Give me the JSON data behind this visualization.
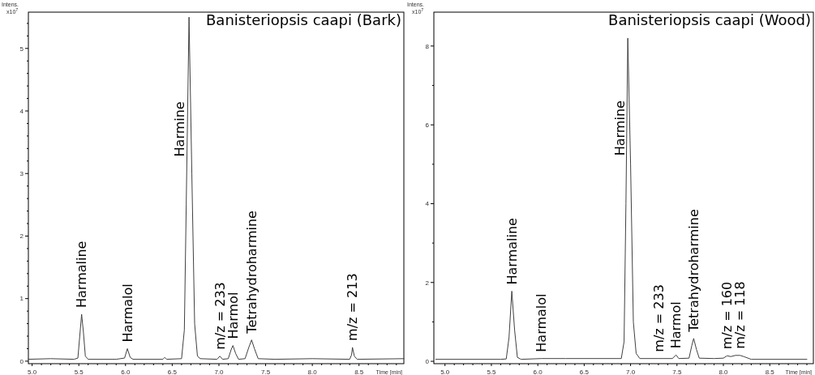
{
  "chart_data": [
    {
      "type": "line",
      "title": "Banisteriopsis caapi (Bark)",
      "xlabel": "Time [min]",
      "ylabel": "Intens. x10$^{7}$",
      "xlim": [
        4.96,
        8.98
      ],
      "ylim": [
        -0.04,
        5.58
      ],
      "xticks": [
        {
          "value": 5,
          "label": "5.0"
        },
        {
          "value": 5.1,
          "label": null
        },
        {
          "value": 5.2,
          "label": null
        },
        {
          "value": 5.3,
          "label": null
        },
        {
          "value": 5.4,
          "label": null
        },
        {
          "value": 5.5,
          "label": "5.5"
        },
        {
          "value": 5.6,
          "label": null
        },
        {
          "value": 5.7,
          "label": null
        },
        {
          "value": 5.8,
          "label": null
        },
        {
          "value": 5.9,
          "label": null
        },
        {
          "value": 6,
          "label": "6.0"
        },
        {
          "value": 6.1,
          "label": null
        },
        {
          "value": 6.2,
          "label": null
        },
        {
          "value": 6.3,
          "label": null
        },
        {
          "value": 6.4,
          "label": null
        },
        {
          "value": 6.5,
          "label": "6.5"
        },
        {
          "value": 6.6,
          "label": null
        },
        {
          "value": 6.7,
          "label": null
        },
        {
          "value": 6.8,
          "label": null
        },
        {
          "value": 6.9,
          "label": null
        },
        {
          "value": 7,
          "label": "7.0"
        },
        {
          "value": 7.1,
          "label": null
        },
        {
          "value": 7.2,
          "label": null
        },
        {
          "value": 7.3,
          "label": null
        },
        {
          "value": 7.4,
          "label": null
        },
        {
          "value": 7.5,
          "label": "7.5"
        },
        {
          "value": 7.6,
          "label": null
        },
        {
          "value": 7.7,
          "label": null
        },
        {
          "value": 7.8,
          "label": null
        },
        {
          "value": 7.9,
          "label": null
        },
        {
          "value": 8,
          "label": "8.0"
        },
        {
          "value": 8.1,
          "label": null
        },
        {
          "value": 8.2,
          "label": null
        },
        {
          "value": 8.3,
          "label": null
        },
        {
          "value": 8.4,
          "label": null
        },
        {
          "value": 8.5,
          "label": "8.5"
        },
        {
          "value": 8.6,
          "label": null
        },
        {
          "value": 8.7,
          "label": null
        },
        {
          "value": 8.8,
          "label": null
        },
        {
          "value": 8.9,
          "label": null
        }
      ],
      "yticks": [
        0,
        {
          "value": 0.2,
          "label": null
        },
        {
          "value": 0.4,
          "label": null
        },
        {
          "value": 0.6,
          "label": null
        },
        {
          "value": 0.8,
          "label": null
        },
        1,
        {
          "value": 1.2,
          "label": null
        },
        {
          "value": 1.4,
          "label": null
        },
        {
          "value": 1.6,
          "label": null
        },
        {
          "value": 1.8,
          "label": null
        },
        2,
        {
          "value": 2.2,
          "label": null
        },
        {
          "value": 2.4,
          "label": null
        },
        {
          "value": 2.6,
          "label": null
        },
        {
          "value": 2.8,
          "label": null
        },
        3,
        {
          "value": 3.2,
          "label": null
        },
        {
          "value": 3.4,
          "label": null
        },
        {
          "value": 3.6,
          "label": null
        },
        {
          "value": 3.8,
          "label": null
        },
        4,
        {
          "value": 4.2,
          "label": null
        },
        {
          "value": 4.4,
          "label": null
        },
        {
          "value": 4.6,
          "label": null
        },
        {
          "value": 4.8,
          "label": null
        },
        5,
        {
          "value": 5.2,
          "label": null
        },
        {
          "value": 5.4,
          "label": null
        }
      ],
      "grid": false,
      "series": [
        {
          "color": "#404040",
          "x": [
            4.96,
            5.2,
            5.45,
            5.49,
            5.51,
            5.53,
            5.55,
            5.57,
            5.6,
            5.9,
            5.99,
            6.02,
            6.05,
            6.08,
            6.4,
            6.42,
            6.44,
            6.6,
            6.63,
            6.65,
            6.68,
            6.71,
            6.74,
            6.77,
            6.8,
            6.98,
            7.01,
            7.04,
            7.1,
            7.13,
            7.15,
            7.18,
            7.21,
            7.28,
            7.32,
            7.35,
            7.38,
            7.42,
            7.6,
            8.0,
            8.4,
            8.42,
            8.43,
            8.45,
            8.48,
            8.98
          ],
          "values": [
            0.03,
            0.04,
            0.03,
            0.05,
            0.4,
            0.75,
            0.45,
            0.08,
            0.03,
            0.03,
            0.05,
            0.2,
            0.06,
            0.03,
            0.03,
            0.06,
            0.03,
            0.04,
            0.5,
            2.5,
            5.5,
            3.0,
            0.6,
            0.08,
            0.04,
            0.03,
            0.08,
            0.03,
            0.04,
            0.18,
            0.25,
            0.12,
            0.03,
            0.04,
            0.22,
            0.34,
            0.2,
            0.04,
            0.03,
            0.04,
            0.03,
            0.1,
            0.22,
            0.08,
            0.03,
            0.04
          ]
        }
      ],
      "annotations": [
        {
          "text": "Harmaline",
          "x": 5.53,
          "y": 0.75
        },
        {
          "text": "Harmalol",
          "x": 6.02,
          "y": 0.2
        },
        {
          "text": "Harmine",
          "x": 6.66,
          "y": 3.7
        },
        {
          "text": "m/z = 233",
          "x": 7.01,
          "y": 0.08
        },
        {
          "text": "Harmol",
          "x": 7.15,
          "y": 0.25
        },
        {
          "text": "Tetrahydroharmine",
          "x": 7.35,
          "y": 0.34
        },
        {
          "text": "m/z = 213",
          "x": 8.43,
          "y": 0.22
        }
      ]
    },
    {
      "type": "line",
      "title": "Banisteriopsis caapi (Wood)",
      "xlabel": "Time [min]",
      "ylabel": "Intens. x10$^{7}$",
      "xlim": [
        4.88,
        8.97
      ],
      "ylim": [
        -0.06,
        8.86
      ],
      "xticks": [
        {
          "value": 5,
          "label": "5.0"
        },
        {
          "value": 5.1,
          "label": null
        },
        {
          "value": 5.2,
          "label": null
        },
        {
          "value": 5.3,
          "label": null
        },
        {
          "value": 5.4,
          "label": null
        },
        {
          "value": 5.5,
          "label": "5.5"
        },
        {
          "value": 5.6,
          "label": null
        },
        {
          "value": 5.7,
          "label": null
        },
        {
          "value": 5.8,
          "label": null
        },
        {
          "value": 5.9,
          "label": null
        },
        {
          "value": 6,
          "label": "6.0"
        },
        {
          "value": 6.1,
          "label": null
        },
        {
          "value": 6.2,
          "label": null
        },
        {
          "value": 6.3,
          "label": null
        },
        {
          "value": 6.4,
          "label": null
        },
        {
          "value": 6.5,
          "label": "6.5"
        },
        {
          "value": 6.6,
          "label": null
        },
        {
          "value": 6.7,
          "label": null
        },
        {
          "value": 6.8,
          "label": null
        },
        {
          "value": 6.9,
          "label": null
        },
        {
          "value": 7,
          "label": "7.0"
        },
        {
          "value": 7.1,
          "label": null
        },
        {
          "value": 7.2,
          "label": null
        },
        {
          "value": 7.3,
          "label": null
        },
        {
          "value": 7.4,
          "label": null
        },
        {
          "value": 7.5,
          "label": "7.5"
        },
        {
          "value": 7.6,
          "label": null
        },
        {
          "value": 7.7,
          "label": null
        },
        {
          "value": 7.8,
          "label": null
        },
        {
          "value": 7.9,
          "label": null
        },
        {
          "value": 8,
          "label": "8.0"
        },
        {
          "value": 8.1,
          "label": null
        },
        {
          "value": 8.2,
          "label": null
        },
        {
          "value": 8.3,
          "label": null
        },
        {
          "value": 8.4,
          "label": null
        },
        {
          "value": 8.5,
          "label": "8.5"
        },
        {
          "value": 8.6,
          "label": null
        },
        {
          "value": 8.7,
          "label": null
        },
        {
          "value": 8.8,
          "label": null
        },
        {
          "value": 8.9,
          "label": null
        }
      ],
      "yticks": [
        0,
        {
          "value": 1,
          "label": null
        },
        2,
        {
          "value": 3,
          "label": null
        },
        4,
        {
          "value": 5,
          "label": null
        },
        6,
        {
          "value": 7,
          "label": null
        },
        8
      ],
      "grid": false,
      "series": [
        {
          "color": "#404040",
          "x": [
            4.9,
            5.6,
            5.66,
            5.69,
            5.72,
            5.75,
            5.78,
            5.82,
            6.04,
            6.3,
            6.9,
            6.93,
            6.95,
            6.97,
            7.0,
            7.03,
            7.06,
            7.1,
            7.3,
            7.45,
            7.49,
            7.52,
            7.63,
            7.66,
            7.68,
            7.71,
            7.74,
            7.9,
            8.0,
            8.04,
            8.08,
            8.13,
            8.18,
            8.22,
            8.3,
            8.9
          ],
          "values": [
            0.05,
            0.05,
            0.06,
            0.6,
            1.78,
            0.8,
            0.1,
            0.05,
            0.07,
            0.07,
            0.07,
            0.5,
            4.0,
            8.2,
            5.0,
            1.0,
            0.2,
            0.07,
            0.07,
            0.07,
            0.16,
            0.07,
            0.08,
            0.4,
            0.58,
            0.3,
            0.08,
            0.07,
            0.08,
            0.14,
            0.12,
            0.15,
            0.15,
            0.12,
            0.05,
            0.05
          ]
        }
      ],
      "annotations": [
        {
          "text": "Harmaline",
          "x": 5.72,
          "y": 1.78
        },
        {
          "text": "Harmalol",
          "x": 6.04,
          "y": 0.07
        },
        {
          "text": "Harmine",
          "x": 6.96,
          "y": 5.9
        },
        {
          "text": "m/z = 233",
          "x": 7.3,
          "y": 0.07
        },
        {
          "text": "Harmol",
          "x": 7.49,
          "y": 0.16
        },
        {
          "text": "Tetrahydroharmine",
          "x": 7.68,
          "y": 0.58
        },
        {
          "text": "m/z = 160",
          "x": 8.04,
          "y": 0.14
        },
        {
          "text": "m/z = 118",
          "x": 8.18,
          "y": 0.15
        }
      ]
    }
  ]
}
